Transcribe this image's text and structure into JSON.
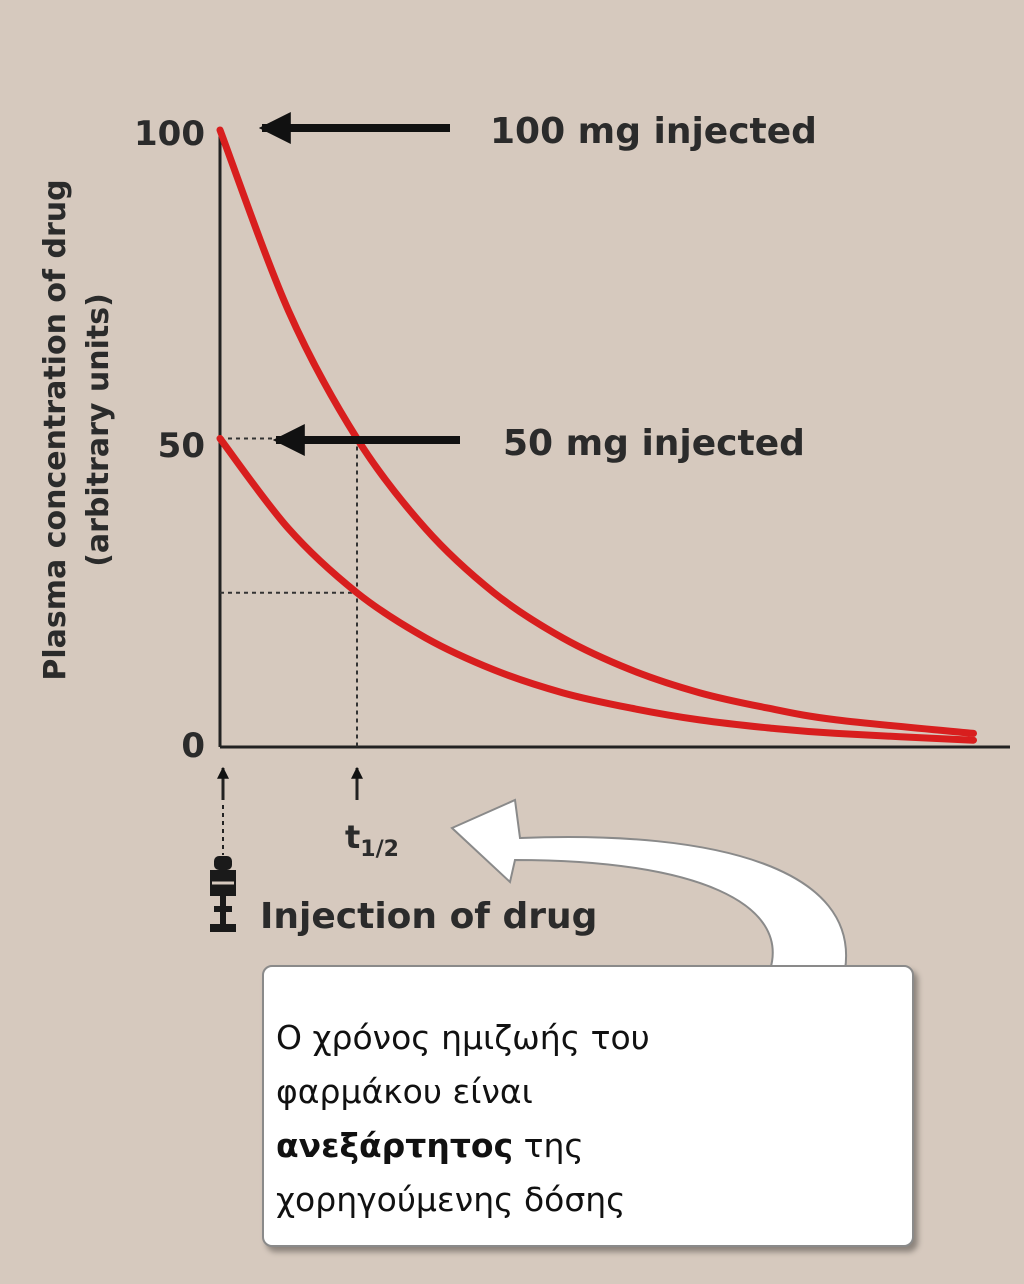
{
  "chart_data": {
    "type": "line",
    "ylabel_line1": "Plasma concentration of drug",
    "ylabel_line2": "(arbitrary units)",
    "ylim": [
      0,
      100
    ],
    "y_ticks": [
      "0",
      "50",
      "100"
    ],
    "x_axis_unlabeled": true,
    "half_life_label": "t",
    "half_life_sub": "1/2",
    "injection_label": "Injection of drug",
    "series": [
      {
        "label": "100 mg injected",
        "color": "#d81e1e",
        "x": [
          0,
          0.5,
          1,
          1.5,
          2,
          2.5,
          3,
          3.5,
          4,
          4.5,
          5.5
        ],
        "y": [
          100,
          70.7,
          50,
          35.4,
          25,
          17.7,
          12.5,
          8.8,
          6.3,
          4.4,
          2.2
        ]
      },
      {
        "label": "50 mg injected",
        "color": "#d81e1e",
        "x": [
          0,
          0.5,
          1,
          1.5,
          2,
          2.5,
          3,
          3.5,
          4,
          4.5,
          5.5
        ],
        "y": [
          50,
          35.4,
          25,
          17.7,
          12.5,
          8.8,
          6.3,
          4.4,
          3.1,
          2.2,
          1.1
        ]
      }
    ],
    "guides": {
      "half_life_x": 1,
      "levels": [
        50,
        25
      ]
    }
  },
  "note": {
    "line1": "Ο χρόνος ημιζωής του",
    "line2": "φαρμάκου είναι",
    "line3_bold": "ανεξάρτητος",
    "line3_rest": " της",
    "line4": " χορηγούμενης δόσης"
  }
}
